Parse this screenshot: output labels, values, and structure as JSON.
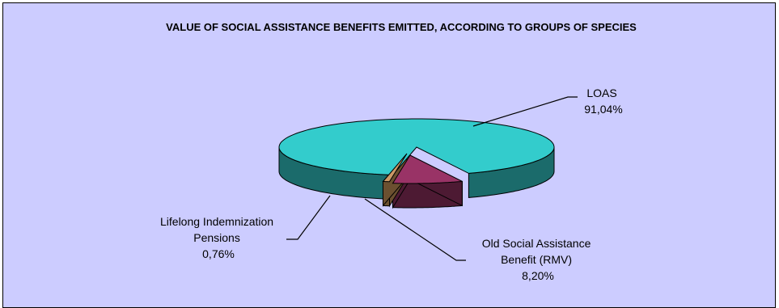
{
  "chart_data": {
    "type": "pie",
    "style": "3d-exploded",
    "title": "VALUE OF SOCIAL ASSISTANCE BENEFITS EMITTED, ACCORDING TO GROUPS OF SPECIES",
    "slices": [
      {
        "value": 91.04,
        "label_lines": [
          "LOAS",
          "91,04%"
        ],
        "color": "#33cccc",
        "side_color": "#1b6b6b"
      },
      {
        "value": 8.2,
        "label_lines": [
          "Old Social Assistance",
          "Benefit (RMV)",
          "8,20%"
        ],
        "color": "#993366",
        "side_color": "#4d1a33"
      },
      {
        "value": 0.76,
        "label_lines": [
          "Lifelong Indemnization",
          "Pensions",
          "0,76%"
        ],
        "color": "#cc9966",
        "side_color": "#6b5030"
      }
    ],
    "legend": "none",
    "background_color": "#ccccff"
  }
}
